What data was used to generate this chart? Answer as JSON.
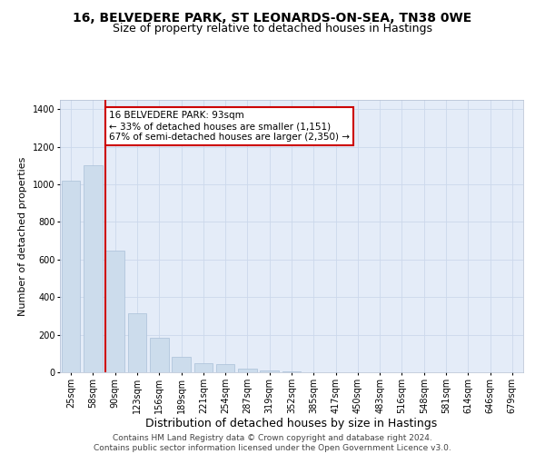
{
  "title_line1": "16, BELVEDERE PARK, ST LEONARDS-ON-SEA, TN38 0WE",
  "title_line2": "Size of property relative to detached houses in Hastings",
  "xlabel": "Distribution of detached houses by size in Hastings",
  "ylabel": "Number of detached properties",
  "categories": [
    "25sqm",
    "58sqm",
    "90sqm",
    "123sqm",
    "156sqm",
    "189sqm",
    "221sqm",
    "254sqm",
    "287sqm",
    "319sqm",
    "352sqm",
    "385sqm",
    "417sqm",
    "450sqm",
    "483sqm",
    "516sqm",
    "548sqm",
    "581sqm",
    "614sqm",
    "646sqm",
    "679sqm"
  ],
  "values": [
    1020,
    1100,
    650,
    315,
    185,
    80,
    50,
    45,
    20,
    10,
    5,
    0,
    0,
    0,
    0,
    0,
    0,
    0,
    0,
    0,
    0
  ],
  "bar_color": "#ccdcec",
  "bar_edge_color": "#aac0d8",
  "vline_color": "#cc0000",
  "annotation_text": "16 BELVEDERE PARK: 93sqm\n← 33% of detached houses are smaller (1,151)\n67% of semi-detached houses are larger (2,350) →",
  "annotation_box_color": "#ffffff",
  "annotation_box_edge": "#cc0000",
  "ylim": [
    0,
    1450
  ],
  "yticks": [
    0,
    200,
    400,
    600,
    800,
    1000,
    1200,
    1400
  ],
  "grid_color": "#ccd8ec",
  "bg_color": "#e4ecf8",
  "footer": "Contains HM Land Registry data © Crown copyright and database right 2024.\nContains public sector information licensed under the Open Government Licence v3.0.",
  "title_fontsize": 10,
  "subtitle_fontsize": 9,
  "xlabel_fontsize": 9,
  "ylabel_fontsize": 8,
  "tick_fontsize": 7,
  "footer_fontsize": 6.5,
  "annot_fontsize": 7.5
}
